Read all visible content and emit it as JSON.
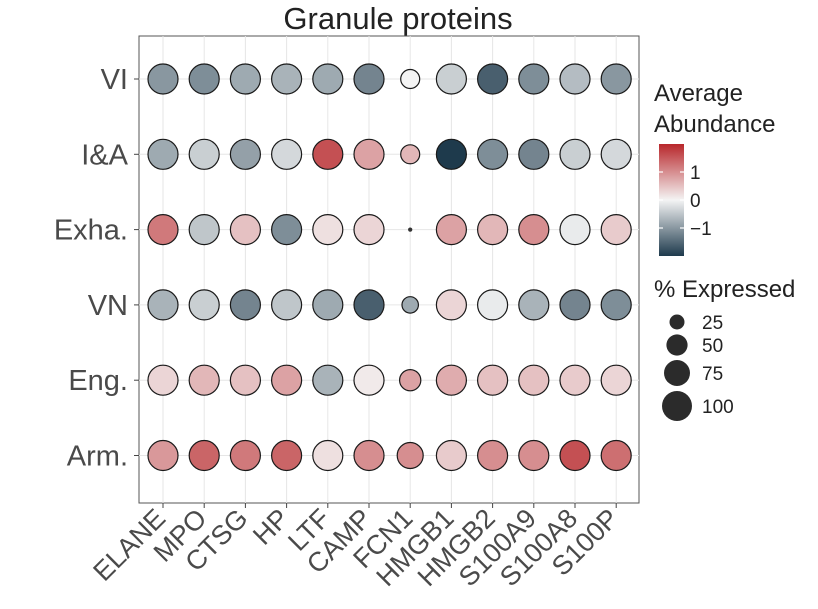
{
  "chart_data": {
    "type": "dot",
    "title": "Granule proteins",
    "xlabel": "",
    "ylabel": "",
    "categories": [
      "ELANE",
      "MPO",
      "CTSG",
      "HP",
      "LTF",
      "CAMP",
      "FCN1",
      "HMGB1",
      "HMGB2",
      "S100A9",
      "S100A8",
      "S100P"
    ],
    "rows": [
      "VI",
      "I&A",
      "Exha.",
      "VN",
      "Eng.",
      "Arm."
    ],
    "abundance": [
      [
        -1.0,
        -1.1,
        -0.8,
        -0.7,
        -0.8,
        -1.2,
        0.0,
        -0.4,
        -1.6,
        -1.1,
        -0.6,
        -1.0
      ],
      [
        -0.8,
        -0.4,
        -0.9,
        -0.3,
        1.6,
        0.8,
        0.6,
        -2.0,
        -1.1,
        -1.2,
        -0.4,
        -0.3
      ],
      [
        1.2,
        -0.5,
        0.5,
        -1.1,
        0.2,
        0.3,
        -1.0,
        0.8,
        0.6,
        1.0,
        -0.1,
        0.4
      ],
      [
        -0.7,
        -0.4,
        -1.2,
        -0.5,
        -0.8,
        -1.6,
        -0.8,
        0.3,
        -0.1,
        -0.7,
        -1.2,
        -1.1
      ],
      [
        0.3,
        0.6,
        0.5,
        0.8,
        -0.7,
        0.1,
        0.8,
        0.7,
        0.5,
        0.5,
        0.4,
        0.3
      ],
      [
        0.9,
        1.4,
        1.2,
        1.4,
        0.2,
        1.0,
        1.0,
        0.4,
        1.0,
        1.0,
        1.6,
        1.3
      ]
    ],
    "pct_expressed": [
      [
        100,
        100,
        100,
        100,
        100,
        100,
        40,
        100,
        100,
        100,
        100,
        100
      ],
      [
        100,
        100,
        100,
        100,
        100,
        100,
        40,
        100,
        100,
        100,
        100,
        100
      ],
      [
        100,
        100,
        100,
        100,
        100,
        100,
        2,
        100,
        100,
        100,
        100,
        100
      ],
      [
        100,
        100,
        100,
        100,
        100,
        100,
        30,
        100,
        100,
        100,
        100,
        100
      ],
      [
        100,
        100,
        100,
        100,
        100,
        100,
        50,
        100,
        100,
        100,
        100,
        100
      ],
      [
        100,
        100,
        100,
        100,
        100,
        100,
        75,
        100,
        100,
        100,
        100,
        100
      ]
    ],
    "color_scale": {
      "title": [
        "Average",
        "Abundance"
      ],
      "ticks": [
        1,
        0,
        -1
      ],
      "tick_labels": [
        "1",
        "0",
        "−1"
      ],
      "domain": [
        -2,
        2
      ],
      "low_color": "#1e3a4c",
      "mid_color": "#f4f4f4",
      "high_color": "#b8272b"
    },
    "size_scale": {
      "title": "% Expressed",
      "values": [
        25,
        50,
        75,
        100
      ],
      "labels": [
        "25",
        "50",
        "75",
        "100"
      ],
      "color": "#2b2b2b"
    },
    "grid": true,
    "legend_position": "right"
  }
}
